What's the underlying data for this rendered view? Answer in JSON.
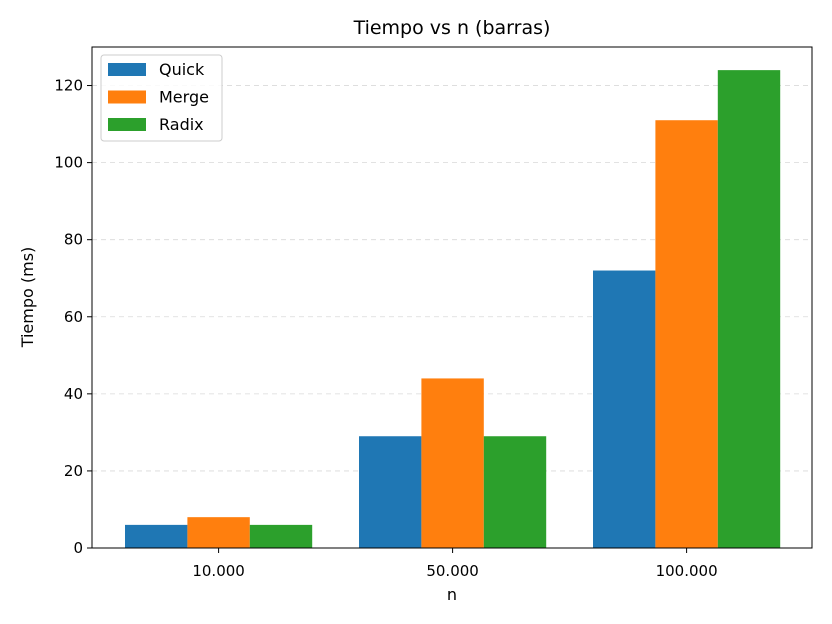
{
  "chart_data": {
    "type": "bar",
    "title": "Tiempo vs n (barras)",
    "xlabel": "n",
    "ylabel": "Tiempo (ms)",
    "categories": [
      "10.000",
      "50.000",
      "100.000"
    ],
    "series": [
      {
        "name": "Quick",
        "color": "#1f77b4",
        "values": [
          6,
          29,
          72
        ]
      },
      {
        "name": "Merge",
        "color": "#ff7f0e",
        "values": [
          8,
          44,
          111
        ]
      },
      {
        "name": "Radix",
        "color": "#2ca02c",
        "values": [
          6,
          29,
          124
        ]
      }
    ],
    "ylim": [
      0,
      130
    ],
    "yticks": [
      0,
      20,
      40,
      60,
      80,
      100,
      120
    ],
    "grid": "y-dashed",
    "legend_position": "top-left"
  }
}
